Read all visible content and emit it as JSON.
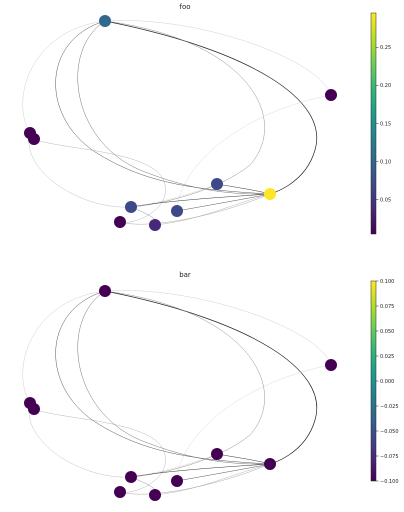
{
  "panels": [
    {
      "title": "foo",
      "colorbar": {
        "ticks": [
          "0.25",
          "0.20",
          "0.15",
          "0.10",
          "0.05"
        ],
        "tick_values": [
          0.25,
          0.2,
          0.15,
          0.1,
          0.05
        ],
        "range": [
          0.005,
          0.295
        ]
      },
      "nodes": [
        {
          "id": "n1",
          "value": 0.1
        },
        {
          "id": "n2",
          "value": 0.01
        },
        {
          "id": "n3",
          "value": 0.01
        },
        {
          "id": "n4",
          "value": 0.01
        },
        {
          "id": "n5",
          "value": 0.06
        },
        {
          "id": "n6",
          "value": 0.295
        },
        {
          "id": "n7",
          "value": 0.07
        },
        {
          "id": "n8",
          "value": 0.07
        },
        {
          "id": "n9",
          "value": 0.02
        },
        {
          "id": "n10",
          "value": 0.05
        }
      ]
    },
    {
      "title": "bar",
      "colorbar": {
        "ticks": [
          "0.100",
          "0.075",
          "0.050",
          "0.025",
          "0.000",
          "−0.025",
          "−0.050",
          "−0.075",
          "−0.100"
        ],
        "tick_values": [
          0.1,
          0.075,
          0.05,
          0.025,
          0.0,
          -0.025,
          -0.05,
          -0.075,
          -0.1
        ],
        "range": [
          -0.1,
          0.1
        ]
      },
      "nodes": [
        {
          "id": "n1",
          "value": -0.1
        },
        {
          "id": "n2",
          "value": -0.1
        },
        {
          "id": "n3",
          "value": -0.1
        },
        {
          "id": "n4",
          "value": -0.1
        },
        {
          "id": "n5",
          "value": -0.1
        },
        {
          "id": "n6",
          "value": -0.1
        },
        {
          "id": "n7",
          "value": -0.1
        },
        {
          "id": "n8",
          "value": -0.1
        },
        {
          "id": "n9",
          "value": -0.1
        },
        {
          "id": "n10",
          "value": -0.1
        }
      ]
    }
  ],
  "colors": {
    "viridis": [
      "#440154",
      "#482878",
      "#3e4989",
      "#31688e",
      "#26828e",
      "#1f9e89",
      "#35b779",
      "#6ece58",
      "#b5de2b",
      "#fde725"
    ]
  }
}
